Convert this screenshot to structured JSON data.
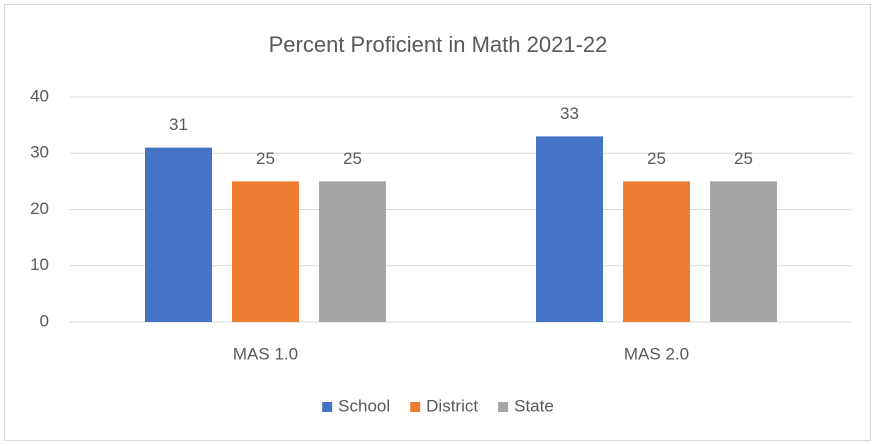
{
  "chart_data": {
    "type": "bar",
    "title": "Percent Proficient in Math 2021-22",
    "categories": [
      "MAS 1.0",
      "MAS 2.0"
    ],
    "series": [
      {
        "name": "School",
        "color": "#4472c4",
        "values": [
          31,
          33
        ]
      },
      {
        "name": "District",
        "color": "#ed7d31",
        "values": [
          25,
          25
        ]
      },
      {
        "name": "State",
        "color": "#a5a5a5",
        "values": [
          25,
          25
        ]
      }
    ],
    "ylim": [
      0,
      40
    ],
    "yticks": [
      0,
      10,
      20,
      30,
      40
    ],
    "grid": true,
    "legend": "bottom"
  }
}
